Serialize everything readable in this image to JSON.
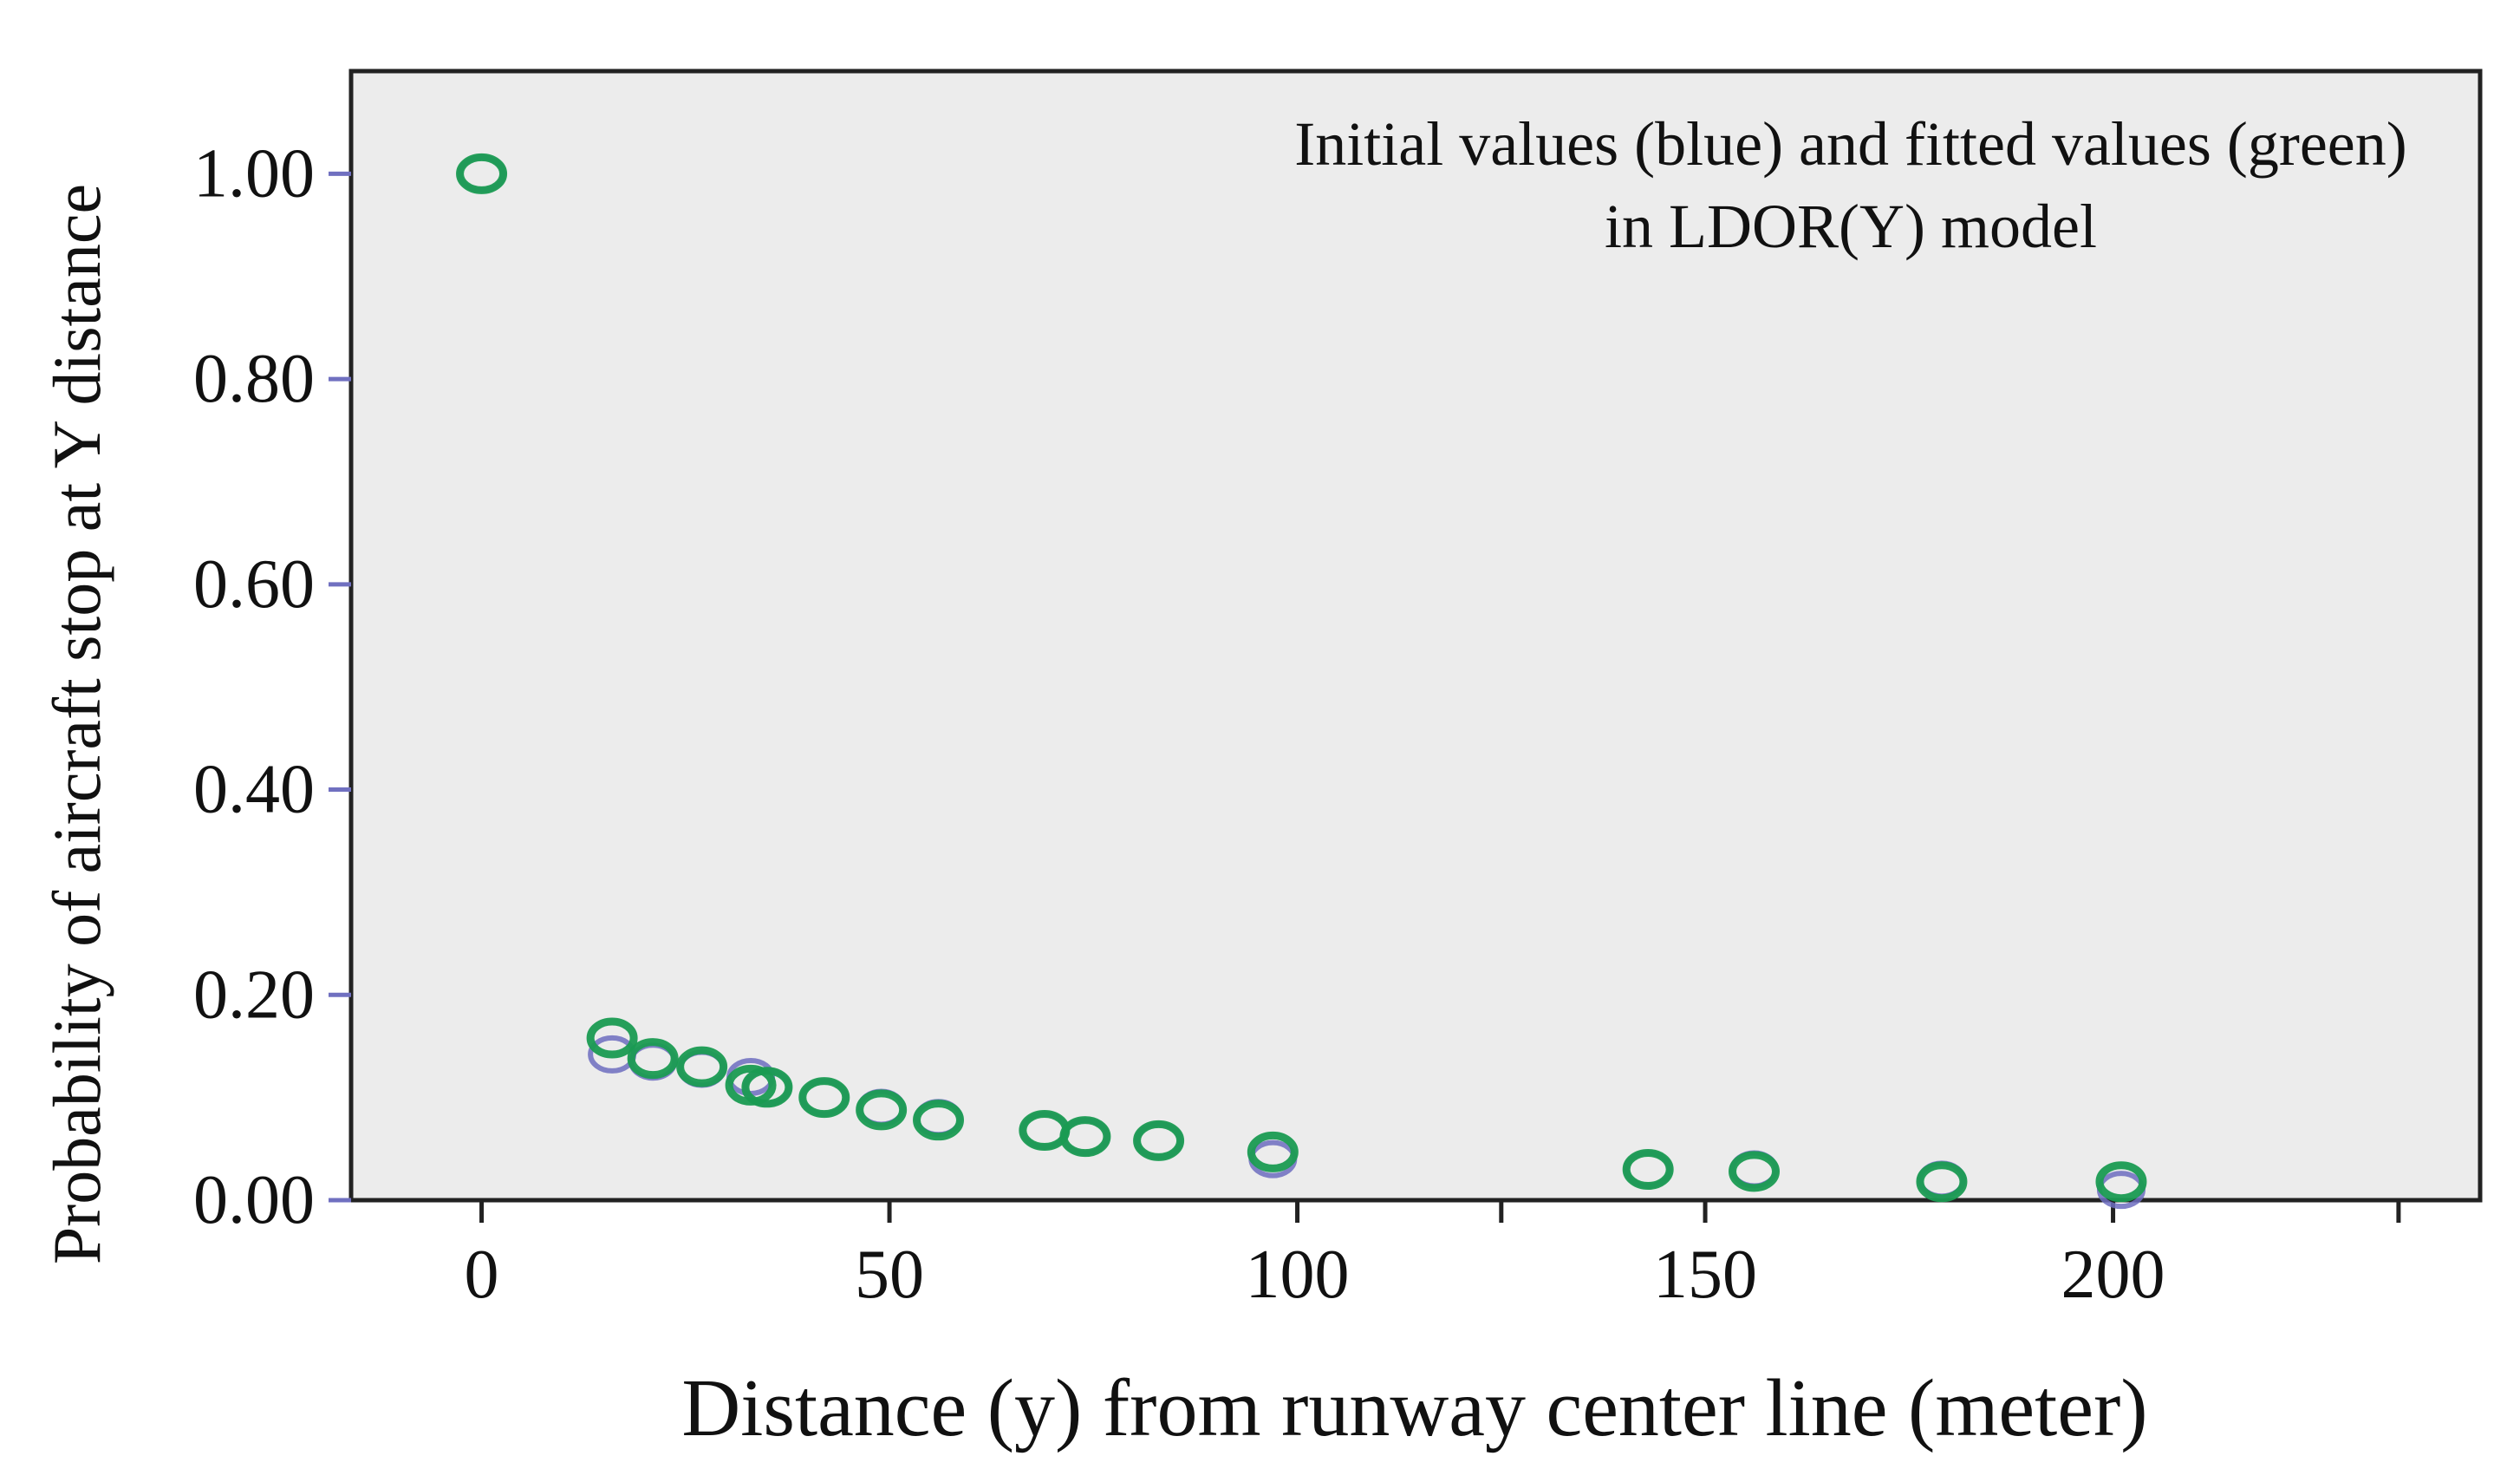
{
  "chart_data": {
    "type": "scatter",
    "title": "",
    "annotation": [
      "Initial values (blue) and fitted values (green)",
      "in LDOR(Y) model"
    ],
    "xlabel": "Distance (y) from runway center line (meter)",
    "ylabel": "Probability of aircraft stop at Y distance",
    "xlim": [
      -16,
      245
    ],
    "ylim": [
      0,
      1.1
    ],
    "x_ticks": [
      0,
      50,
      100,
      150,
      200
    ],
    "x_tick_labels": [
      "0",
      "50",
      "100",
      "150",
      "200"
    ],
    "x_minor_ticks": [
      125,
      235
    ],
    "y_ticks": [
      0,
      0.2,
      0.4,
      0.6,
      0.8,
      1.0
    ],
    "y_tick_labels": [
      "0.00",
      "0.20",
      "0.40",
      "0.60",
      "0.80",
      "1.00"
    ],
    "grid": false,
    "series": [
      {
        "name": "Initial values",
        "color": "#6d6dc0",
        "points": [
          {
            "x": 0,
            "y": 1.0
          },
          {
            "x": 16,
            "y": 0.142
          },
          {
            "x": 21,
            "y": 0.135
          },
          {
            "x": 27,
            "y": 0.128
          },
          {
            "x": 33,
            "y": 0.12
          },
          {
            "x": 35,
            "y": 0.11
          },
          {
            "x": 42,
            "y": 0.1
          },
          {
            "x": 49,
            "y": 0.09
          },
          {
            "x": 56,
            "y": 0.08
          },
          {
            "x": 69,
            "y": 0.068
          },
          {
            "x": 74,
            "y": 0.062
          },
          {
            "x": 83,
            "y": 0.058
          },
          {
            "x": 97,
            "y": 0.04
          },
          {
            "x": 143,
            "y": 0.03
          },
          {
            "x": 156,
            "y": 0.03
          },
          {
            "x": 179,
            "y": 0.02
          },
          {
            "x": 201,
            "y": 0.01
          }
        ]
      },
      {
        "name": "Fitted values",
        "color": "#1a9b52",
        "points": [
          {
            "x": 0,
            "y": 1.0
          },
          {
            "x": 16,
            "y": 0.158
          },
          {
            "x": 21,
            "y": 0.138
          },
          {
            "x": 27,
            "y": 0.13
          },
          {
            "x": 33,
            "y": 0.112
          },
          {
            "x": 35,
            "y": 0.11
          },
          {
            "x": 42,
            "y": 0.1
          },
          {
            "x": 49,
            "y": 0.088
          },
          {
            "x": 56,
            "y": 0.078
          },
          {
            "x": 69,
            "y": 0.068
          },
          {
            "x": 74,
            "y": 0.062
          },
          {
            "x": 83,
            "y": 0.058
          },
          {
            "x": 97,
            "y": 0.047
          },
          {
            "x": 143,
            "y": 0.03
          },
          {
            "x": 156,
            "y": 0.028
          },
          {
            "x": 179,
            "y": 0.018
          },
          {
            "x": 201,
            "y": 0.018
          }
        ]
      }
    ]
  }
}
